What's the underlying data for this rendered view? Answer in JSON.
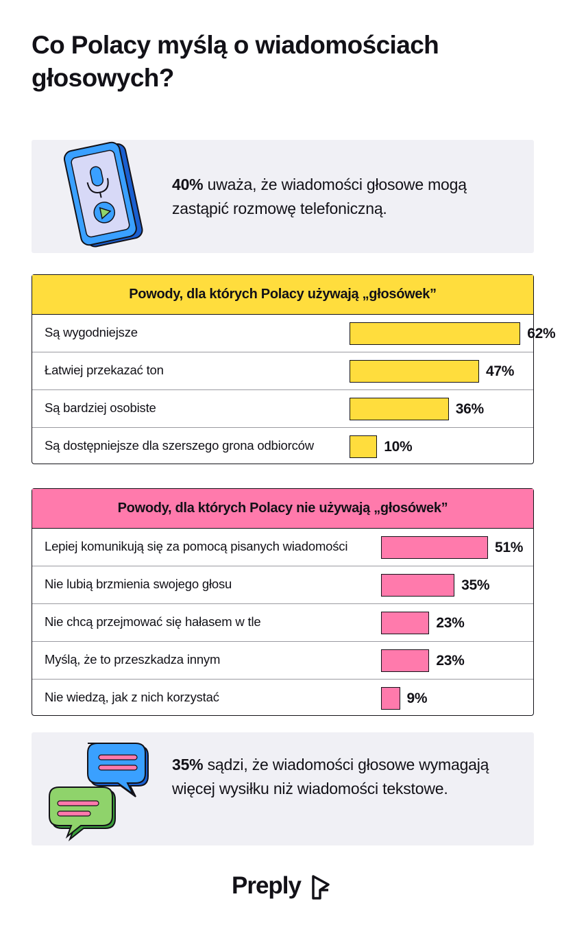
{
  "title": "Co Polacy myślą o wiadomościach głosowych?",
  "top_card": {
    "highlight": "40%",
    "text": " uważa, że wiadomości głosowe mogą zastąpić rozmowę telefoniczną.",
    "icon": "phone-microphone-icon"
  },
  "bottom_card": {
    "highlight": "35%",
    "text": " sądzi, że wiadomości głosowe wymagają więcej wysiłku niż wiadomości tekstowe.",
    "icon": "chat-bubbles-icon"
  },
  "logo": {
    "text": "Preply",
    "icon": "preply-logo-icon"
  },
  "colors": {
    "yellow": "#ffdd3d",
    "pink": "#ff7aac",
    "card_bg": "#f0f0f5",
    "blue": "#3aa0ff",
    "green": "#8fd36b"
  },
  "chart_data": [
    {
      "type": "bar",
      "orientation": "horizontal",
      "title": "Powody, dla których Polacy używają „głosówek”",
      "categories": [
        "Są wygodniejsze",
        "Łatwiej przekazać ton",
        "Są bardziej osobiste",
        "Są dostępniejsze dla szerszego grona odbiorców"
      ],
      "values": [
        62,
        47,
        36,
        10
      ],
      "value_labels": [
        "62%",
        "47%",
        "36%",
        "10%"
      ],
      "unit": "%",
      "color": "#ffdd3d"
    },
    {
      "type": "bar",
      "orientation": "horizontal",
      "title": "Powody, dla których Polacy nie używają „głosówek”",
      "categories": [
        "Lepiej komunikują się za pomocą pisanych wiadomości",
        "Nie lubią brzmienia swojego głosu",
        "Nie chcą przejmować się hałasem w tle",
        "Myślą, że to przeszkadza innym",
        "Nie wiedzą, jak z nich korzystać"
      ],
      "values": [
        51,
        35,
        23,
        23,
        9
      ],
      "value_labels": [
        "51%",
        "35%",
        "23%",
        "23%",
        "9%"
      ],
      "unit": "%",
      "color": "#ff7aac"
    }
  ]
}
